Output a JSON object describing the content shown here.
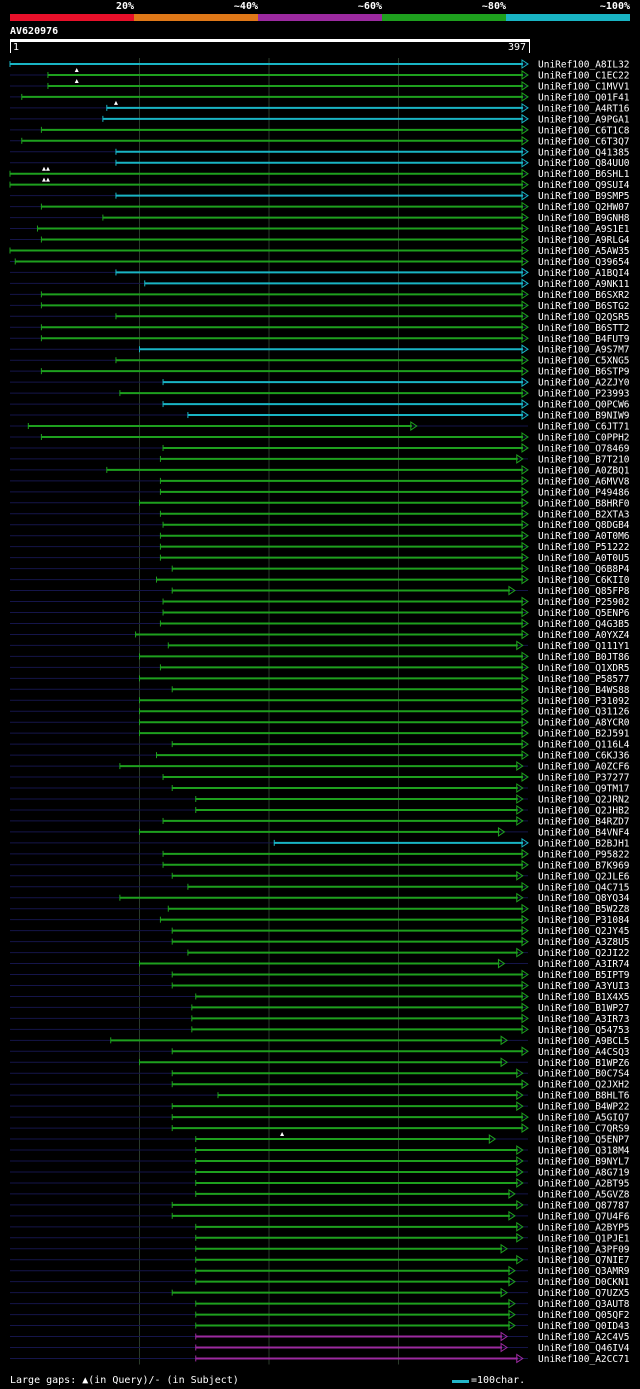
{
  "chart_data": {
    "type": "alignment-overview",
    "query": "AV620976",
    "query_length": 397,
    "ruler": {
      "start_label": "1",
      "end_label": "397"
    },
    "identity_legend": [
      {
        "label": "20%",
        "color": "#e8102a"
      },
      {
        "label": "~40%",
        "color": "#e07818"
      },
      {
        "label": "~60%",
        "color": "#9c2aa0"
      },
      {
        "label": "~80%",
        "color": "#1ea01e"
      },
      {
        "label": "~100%",
        "color": "#19b4c4"
      }
    ],
    "hits": [
      {
        "name": "UniRef100_A8IL32",
        "start": 1,
        "end": 397,
        "identity": "~100%"
      },
      {
        "name": "UniRef100_C1EC22",
        "start": 30,
        "end": 397,
        "identity": "~80%"
      },
      {
        "name": "UniRef100_C1MVV1",
        "start": 30,
        "end": 397,
        "identity": "~80%"
      },
      {
        "name": "UniRef100_Q01F41",
        "start": 10,
        "end": 397,
        "identity": "~80%"
      },
      {
        "name": "UniRef100_A4RT16",
        "start": 75,
        "end": 397,
        "identity": "~100%"
      },
      {
        "name": "UniRef100_A9PGA1",
        "start": 72,
        "end": 397,
        "identity": "~100%"
      },
      {
        "name": "UniRef100_C6T1C8",
        "start": 25,
        "end": 397,
        "identity": "~80%"
      },
      {
        "name": "UniRef100_C6T3Q7",
        "start": 10,
        "end": 397,
        "identity": "~80%"
      },
      {
        "name": "UniRef100_Q41385",
        "start": 82,
        "end": 397,
        "identity": "~100%"
      },
      {
        "name": "UniRef100_Q84UU0",
        "start": 82,
        "end": 397,
        "identity": "~100%"
      },
      {
        "name": "UniRef100_B6SHL1",
        "start": 1,
        "end": 397,
        "identity": "~80%"
      },
      {
        "name": "UniRef100_Q9SUI4",
        "start": 1,
        "end": 397,
        "identity": "~80%"
      },
      {
        "name": "UniRef100_B9SMP5",
        "start": 82,
        "end": 397,
        "identity": "~100%"
      },
      {
        "name": "UniRef100_Q2HW07",
        "start": 25,
        "end": 397,
        "identity": "~80%"
      },
      {
        "name": "UniRef100_B9GNH8",
        "start": 72,
        "end": 397,
        "identity": "~80%"
      },
      {
        "name": "UniRef100_A9S1E1",
        "start": 22,
        "end": 397,
        "identity": "~80%"
      },
      {
        "name": "UniRef100_A9RLG4",
        "start": 25,
        "end": 397,
        "identity": "~80%"
      },
      {
        "name": "UniRef100_A5AW35",
        "start": 1,
        "end": 397,
        "identity": "~80%"
      },
      {
        "name": "UniRef100_Q39654",
        "start": 5,
        "end": 397,
        "identity": "~80%"
      },
      {
        "name": "UniRef100_A1BQI4",
        "start": 82,
        "end": 397,
        "identity": "~100%"
      },
      {
        "name": "UniRef100_A9NK11",
        "start": 104,
        "end": 397,
        "identity": "~100%"
      },
      {
        "name": "UniRef100_B6SXR2",
        "start": 25,
        "end": 397,
        "identity": "~80%"
      },
      {
        "name": "UniRef100_B6STG2",
        "start": 25,
        "end": 397,
        "identity": "~80%"
      },
      {
        "name": "UniRef100_Q2QSR5",
        "start": 82,
        "end": 397,
        "identity": "~80%"
      },
      {
        "name": "UniRef100_B6STT2",
        "start": 25,
        "end": 397,
        "identity": "~80%"
      },
      {
        "name": "UniRef100_B4FUT9",
        "start": 25,
        "end": 397,
        "identity": "~80%"
      },
      {
        "name": "UniRef100_A9S7M7",
        "start": 100,
        "end": 397,
        "identity": "~100%"
      },
      {
        "name": "UniRef100_C5XNG5",
        "start": 82,
        "end": 397,
        "identity": "~80%"
      },
      {
        "name": "UniRef100_B6STP9",
        "start": 25,
        "end": 397,
        "identity": "~80%"
      },
      {
        "name": "UniRef100_A2ZJY0",
        "start": 118,
        "end": 397,
        "identity": "~100%"
      },
      {
        "name": "UniRef100_P23993",
        "start": 85,
        "end": 397,
        "identity": "~80%"
      },
      {
        "name": "UniRef100_Q0PCW6",
        "start": 118,
        "end": 397,
        "identity": "~100%"
      },
      {
        "name": "UniRef100_B9NIW9",
        "start": 137,
        "end": 397,
        "identity": "~100%"
      },
      {
        "name": "UniRef100_C6JT71",
        "start": 15,
        "end": 312,
        "identity": "~80%"
      },
      {
        "name": "UniRef100_C0PPH2",
        "start": 25,
        "end": 397,
        "identity": "~80%"
      },
      {
        "name": "UniRef100_O78469",
        "start": 118,
        "end": 397,
        "identity": "~80%"
      },
      {
        "name": "UniRef100_B7T210",
        "start": 116,
        "end": 393,
        "identity": "~80%"
      },
      {
        "name": "UniRef100_A0ZBQ1",
        "start": 75,
        "end": 397,
        "identity": "~80%"
      },
      {
        "name": "UniRef100_A6MVV8",
        "start": 116,
        "end": 397,
        "identity": "~80%"
      },
      {
        "name": "UniRef100_P49486",
        "start": 116,
        "end": 397,
        "identity": "~80%"
      },
      {
        "name": "UniRef100_B8HRF0",
        "start": 100,
        "end": 397,
        "identity": "~80%"
      },
      {
        "name": "UniRef100_B2XTA3",
        "start": 116,
        "end": 397,
        "identity": "~80%"
      },
      {
        "name": "UniRef100_Q8DGB4",
        "start": 118,
        "end": 397,
        "identity": "~80%"
      },
      {
        "name": "UniRef100_A0T0M6",
        "start": 116,
        "end": 397,
        "identity": "~80%"
      },
      {
        "name": "UniRef100_P51222",
        "start": 116,
        "end": 397,
        "identity": "~80%"
      },
      {
        "name": "UniRef100_A0T0U5",
        "start": 116,
        "end": 397,
        "identity": "~80%"
      },
      {
        "name": "UniRef100_Q6B8P4",
        "start": 125,
        "end": 397,
        "identity": "~80%"
      },
      {
        "name": "UniRef100_C6KII0",
        "start": 113,
        "end": 397,
        "identity": "~80%"
      },
      {
        "name": "UniRef100_Q85FP8",
        "start": 125,
        "end": 387,
        "identity": "~80%"
      },
      {
        "name": "UniRef100_P25902",
        "start": 118,
        "end": 397,
        "identity": "~80%"
      },
      {
        "name": "UniRef100_Q5ENP6",
        "start": 118,
        "end": 397,
        "identity": "~80%"
      },
      {
        "name": "UniRef100_Q4G3B5",
        "start": 116,
        "end": 397,
        "identity": "~80%"
      },
      {
        "name": "UniRef100_A0YXZ4",
        "start": 97,
        "end": 397,
        "identity": "~80%"
      },
      {
        "name": "UniRef100_Q111Y1",
        "start": 122,
        "end": 393,
        "identity": "~80%"
      },
      {
        "name": "UniRef100_B0JT86",
        "start": 100,
        "end": 397,
        "identity": "~80%"
      },
      {
        "name": "UniRef100_Q1XDR5",
        "start": 116,
        "end": 397,
        "identity": "~80%"
      },
      {
        "name": "UniRef100_P58577",
        "start": 100,
        "end": 397,
        "identity": "~80%"
      },
      {
        "name": "UniRef100_B4WS88",
        "start": 125,
        "end": 397,
        "identity": "~80%"
      },
      {
        "name": "UniRef100_P31092",
        "start": 100,
        "end": 397,
        "identity": "~80%"
      },
      {
        "name": "UniRef100_Q31126",
        "start": 100,
        "end": 397,
        "identity": "~80%"
      },
      {
        "name": "UniRef100_A8YCR0",
        "start": 100,
        "end": 397,
        "identity": "~80%"
      },
      {
        "name": "UniRef100_B2J591",
        "start": 100,
        "end": 397,
        "identity": "~80%"
      },
      {
        "name": "UniRef100_Q116L4",
        "start": 125,
        "end": 397,
        "identity": "~80%"
      },
      {
        "name": "UniRef100_C6KJ36",
        "start": 113,
        "end": 397,
        "identity": "~80%"
      },
      {
        "name": "UniRef100_A0ZCF6",
        "start": 85,
        "end": 393,
        "identity": "~80%"
      },
      {
        "name": "UniRef100_P37277",
        "start": 118,
        "end": 397,
        "identity": "~80%"
      },
      {
        "name": "UniRef100_Q9TM17",
        "start": 125,
        "end": 393,
        "identity": "~80%"
      },
      {
        "name": "UniRef100_Q2JRN2",
        "start": 143,
        "end": 393,
        "identity": "~80%"
      },
      {
        "name": "UniRef100_Q2JHB2",
        "start": 143,
        "end": 393,
        "identity": "~80%"
      },
      {
        "name": "UniRef100_B4RZD7",
        "start": 118,
        "end": 393,
        "identity": "~80%"
      },
      {
        "name": "UniRef100_B4VNF4",
        "start": 100,
        "end": 379,
        "identity": "~80%"
      },
      {
        "name": "UniRef100_B2BJH1",
        "start": 203,
        "end": 397,
        "identity": "~100%"
      },
      {
        "name": "UniRef100_P95822",
        "start": 118,
        "end": 397,
        "identity": "~80%"
      },
      {
        "name": "UniRef100_B7K969",
        "start": 118,
        "end": 397,
        "identity": "~80%"
      },
      {
        "name": "UniRef100_Q2JLE6",
        "start": 125,
        "end": 393,
        "identity": "~80%"
      },
      {
        "name": "UniRef100_Q4C715",
        "start": 137,
        "end": 397,
        "identity": "~80%"
      },
      {
        "name": "UniRef100_Q8YQ34",
        "start": 85,
        "end": 393,
        "identity": "~80%"
      },
      {
        "name": "UniRef100_B5W2Z8",
        "start": 122,
        "end": 397,
        "identity": "~80%"
      },
      {
        "name": "UniRef100_P31084",
        "start": 116,
        "end": 397,
        "identity": "~80%"
      },
      {
        "name": "UniRef100_Q2JY45",
        "start": 125,
        "end": 397,
        "identity": "~80%"
      },
      {
        "name": "UniRef100_A3Z8U5",
        "start": 125,
        "end": 397,
        "identity": "~80%"
      },
      {
        "name": "UniRef100_Q2JI22",
        "start": 137,
        "end": 393,
        "identity": "~80%"
      },
      {
        "name": "UniRef100_A3IR74",
        "start": 100,
        "end": 379,
        "identity": "~80%"
      },
      {
        "name": "UniRef100_B5IPT9",
        "start": 125,
        "end": 397,
        "identity": "~80%"
      },
      {
        "name": "UniRef100_A3YUI3",
        "start": 125,
        "end": 397,
        "identity": "~80%"
      },
      {
        "name": "UniRef100_B1X4X5",
        "start": 143,
        "end": 397,
        "identity": "~80%"
      },
      {
        "name": "UniRef100_B1WP27",
        "start": 140,
        "end": 397,
        "identity": "~80%"
      },
      {
        "name": "UniRef100_A3IR73",
        "start": 140,
        "end": 397,
        "identity": "~80%"
      },
      {
        "name": "UniRef100_Q54753",
        "start": 140,
        "end": 397,
        "identity": "~80%"
      },
      {
        "name": "UniRef100_A9BCL5",
        "start": 78,
        "end": 381,
        "identity": "~80%"
      },
      {
        "name": "UniRef100_A4CSQ3",
        "start": 125,
        "end": 397,
        "identity": "~80%"
      },
      {
        "name": "UniRef100_B1WPZ6",
        "start": 100,
        "end": 381,
        "identity": "~80%"
      },
      {
        "name": "UniRef100_B0C7S4",
        "start": 125,
        "end": 393,
        "identity": "~80%"
      },
      {
        "name": "UniRef100_Q2JXH2",
        "start": 125,
        "end": 397,
        "identity": "~80%"
      },
      {
        "name": "UniRef100_B8HLT6",
        "start": 160,
        "end": 393,
        "identity": "~80%"
      },
      {
        "name": "UniRef100_B4WP22",
        "start": 125,
        "end": 393,
        "identity": "~80%"
      },
      {
        "name": "UniRef100_A5GIQ7",
        "start": 125,
        "end": 397,
        "identity": "~80%"
      },
      {
        "name": "UniRef100_C7QRS9",
        "start": 125,
        "end": 397,
        "identity": "~80%"
      },
      {
        "name": "UniRef100_Q5ENP7",
        "start": 143,
        "end": 372,
        "identity": "~80%"
      },
      {
        "name": "UniRef100_Q318M4",
        "start": 143,
        "end": 393,
        "identity": "~80%"
      },
      {
        "name": "UniRef100_B9NYL7",
        "start": 143,
        "end": 393,
        "identity": "~80%"
      },
      {
        "name": "UniRef100_A8G719",
        "start": 143,
        "end": 393,
        "identity": "~80%"
      },
      {
        "name": "UniRef100_A2BT95",
        "start": 143,
        "end": 393,
        "identity": "~80%"
      },
      {
        "name": "UniRef100_A5GVZ8",
        "start": 143,
        "end": 387,
        "identity": "~80%"
      },
      {
        "name": "UniRef100_Q87787",
        "start": 125,
        "end": 393,
        "identity": "~80%"
      },
      {
        "name": "UniRef100_Q7U4F6",
        "start": 125,
        "end": 387,
        "identity": "~80%"
      },
      {
        "name": "UniRef100_A2BYP5",
        "start": 143,
        "end": 393,
        "identity": "~80%"
      },
      {
        "name": "UniRef100_Q1PJE1",
        "start": 143,
        "end": 393,
        "identity": "~80%"
      },
      {
        "name": "UniRef100_A3PF09",
        "start": 143,
        "end": 381,
        "identity": "~80%"
      },
      {
        "name": "UniRef100_Q7NIE7",
        "start": 143,
        "end": 393,
        "identity": "~80%"
      },
      {
        "name": "UniRef100_Q3AMR9",
        "start": 143,
        "end": 387,
        "identity": "~80%"
      },
      {
        "name": "UniRef100_D0CKN1",
        "start": 143,
        "end": 387,
        "identity": "~80%"
      },
      {
        "name": "UniRef100_Q7UZX5",
        "start": 125,
        "end": 381,
        "identity": "~80%"
      },
      {
        "name": "UniRef100_Q3AUT8",
        "start": 143,
        "end": 387,
        "identity": "~80%"
      },
      {
        "name": "UniRef100_Q05QF2",
        "start": 143,
        "end": 387,
        "identity": "~80%"
      },
      {
        "name": "UniRef100_Q0ID43",
        "start": 143,
        "end": 387,
        "identity": "~80%"
      },
      {
        "name": "UniRef100_A2C4V5",
        "start": 143,
        "end": 381,
        "identity": "~60%"
      },
      {
        "name": "UniRef100_Q46IV4",
        "start": 143,
        "end": 381,
        "identity": "~60%"
      },
      {
        "name": "UniRef100_A2CC71",
        "start": 143,
        "end": 393,
        "identity": "~60%"
      }
    ],
    "gap_markers": [
      {
        "hit": "UniRef100_C1EC22",
        "pos": 52
      },
      {
        "hit": "UniRef100_C1MVV1",
        "pos": 52
      },
      {
        "hit": "UniRef100_A4RT16",
        "pos": 82
      },
      {
        "hit": "UniRef100_B6SHL1",
        "pos": 27
      },
      {
        "hit": "UniRef100_B6SHL1",
        "pos": 30
      },
      {
        "hit": "UniRef100_Q9SUI4",
        "pos": 27
      },
      {
        "hit": "UniRef100_Q9SUI4",
        "pos": 30
      },
      {
        "hit": "UniRef100_Q5ENP7",
        "pos": 209
      }
    ]
  },
  "footer": {
    "gaps_text": "Large gaps: ▲(in Query)/- (in Subject)",
    "scale_text": "=100char."
  }
}
